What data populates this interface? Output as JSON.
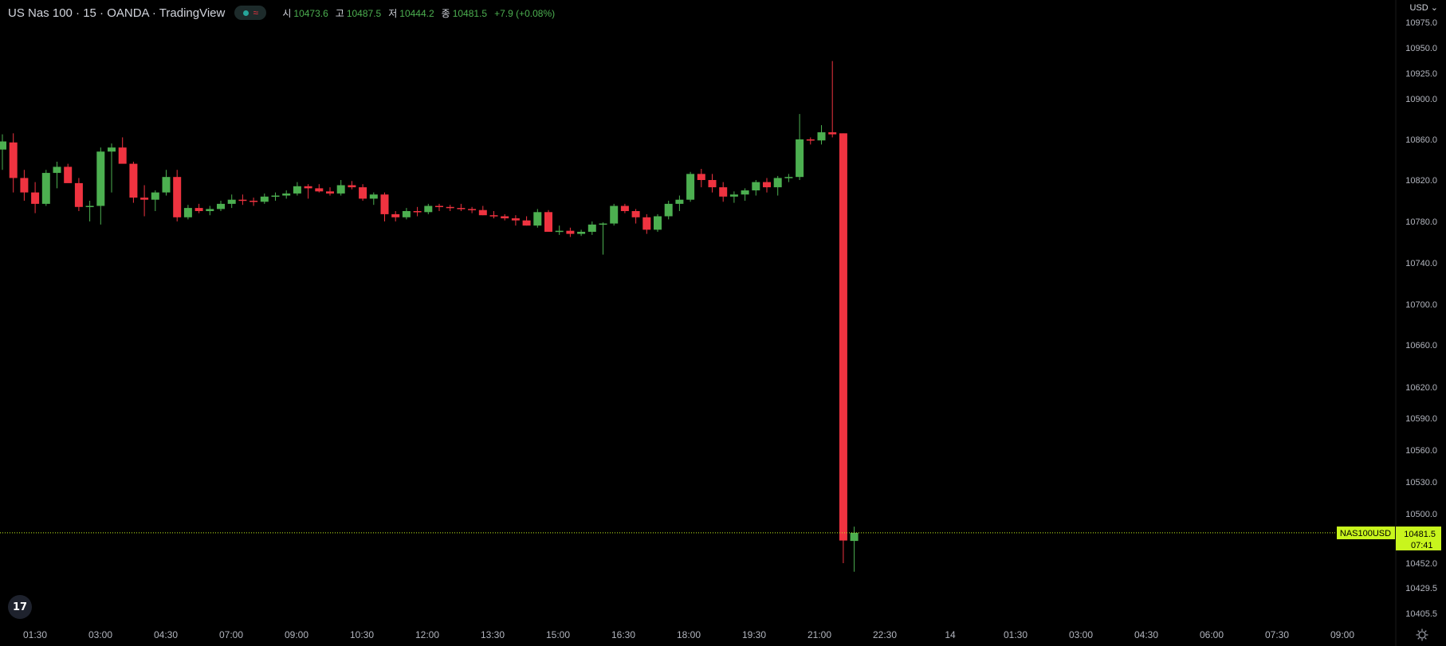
{
  "header": {
    "title": "US Nas 100 · 15 · OANDA · TradingView",
    "ohlc": [
      {
        "label": "시",
        "value": "10473.6"
      },
      {
        "label": "고",
        "value": "10487.5"
      },
      {
        "label": "저",
        "value": "10444.2"
      },
      {
        "label": "종",
        "value": "10481.5"
      }
    ],
    "change": "+7.9 (+0.08%)",
    "status_dot_color": "#26a69a",
    "status_icon": "≈"
  },
  "currency": "USD",
  "logo_text": "17",
  "price_tag": {
    "symbol": "NAS100USD",
    "price": "10481.5",
    "countdown": "07:41"
  },
  "colors": {
    "up": "#4caf50",
    "down": "#ef3340",
    "last_price": "#c8f51d",
    "text": "#d1d4dc"
  },
  "chart_data": {
    "type": "candlestick",
    "interval": "15",
    "y_ticks": [
      10975.0,
      10950.0,
      10925.0,
      10900.0,
      10860.0,
      10820.0,
      10780.0,
      10740.0,
      10700.0,
      10660.0,
      10620.0,
      10590.0,
      10560.0,
      10530.0,
      10500.0,
      10452.0,
      10429.5,
      10405.5
    ],
    "y_tick_labels": [
      "10975.0",
      "10950.0",
      "10925.0",
      "10900.0",
      "10860.0",
      "10820.0",
      "10780.0",
      "10740.0",
      "10700.0",
      "10660.0",
      "10620.0",
      "10590.0",
      "10560.0",
      "10530.0",
      "10500.0",
      "10452.0",
      "10429.5",
      "10405.5"
    ],
    "x_tick_labels": [
      "01:30",
      "03:00",
      "04:30",
      "07:00",
      "09:00",
      "10:30",
      "12:00",
      "13:30",
      "15:00",
      "16:30",
      "18:00",
      "19:30",
      "21:00",
      "22:30",
      "14",
      "01:30",
      "03:00",
      "04:30",
      "06:00",
      "07:30",
      "09:00"
    ],
    "last_price": 10481.5,
    "candles": [
      [
        10850,
        10865,
        10830,
        10858
      ],
      [
        10857,
        10866,
        10808,
        10822
      ],
      [
        10822,
        10830,
        10800,
        10808
      ],
      [
        10808,
        10818,
        10788,
        10797
      ],
      [
        10797,
        10830,
        10795,
        10827
      ],
      [
        10827,
        10838,
        10812,
        10833
      ],
      [
        10833,
        10836,
        10818,
        10817
      ],
      [
        10817,
        10822,
        10790,
        10794
      ],
      [
        10794,
        10800,
        10780,
        10795
      ],
      [
        10795,
        10852,
        10777,
        10848
      ],
      [
        10848,
        10856,
        10808,
        10852
      ],
      [
        10852,
        10862,
        10838,
        10836
      ],
      [
        10836,
        10838,
        10798,
        10803
      ],
      [
        10803,
        10815,
        10785,
        10801
      ],
      [
        10801,
        10810,
        10790,
        10808
      ],
      [
        10808,
        10830,
        10805,
        10823
      ],
      [
        10823,
        10830,
        10780,
        10784
      ],
      [
        10784,
        10796,
        10782,
        10793
      ],
      [
        10793,
        10797,
        10788,
        10790
      ],
      [
        10790,
        10795,
        10786,
        10792
      ],
      [
        10792,
        10800,
        10790,
        10797
      ],
      [
        10797,
        10806,
        10793,
        10801
      ],
      [
        10801,
        10806,
        10796,
        10800
      ],
      [
        10800,
        10803,
        10795,
        10799
      ],
      [
        10799,
        10807,
        10797,
        10804
      ],
      [
        10804,
        10808,
        10800,
        10805
      ],
      [
        10805,
        10810,
        10802,
        10807
      ],
      [
        10807,
        10818,
        10805,
        10814
      ],
      [
        10814,
        10816,
        10802,
        10812
      ],
      [
        10812,
        10816,
        10808,
        10809
      ],
      [
        10809,
        10813,
        10805,
        10807
      ],
      [
        10807,
        10820,
        10805,
        10815
      ],
      [
        10815,
        10819,
        10811,
        10813
      ],
      [
        10813,
        10816,
        10800,
        10802
      ],
      [
        10802,
        10808,
        10796,
        10806
      ],
      [
        10806,
        10808,
        10780,
        10787
      ],
      [
        10787,
        10790,
        10780,
        10784
      ],
      [
        10784,
        10793,
        10782,
        10790
      ],
      [
        10790,
        10794,
        10785,
        10789
      ],
      [
        10789,
        10797,
        10787,
        10795
      ],
      [
        10795,
        10797,
        10790,
        10794
      ],
      [
        10794,
        10796,
        10790,
        10793
      ],
      [
        10793,
        10797,
        10790,
        10792
      ],
      [
        10792,
        10794,
        10788,
        10791
      ],
      [
        10791,
        10795,
        10786,
        10786
      ],
      [
        10786,
        10790,
        10783,
        10785
      ],
      [
        10785,
        10787,
        10781,
        10783
      ],
      [
        10783,
        10786,
        10776,
        10781
      ],
      [
        10781,
        10785,
        10776,
        10776
      ],
      [
        10776,
        10792,
        10774,
        10789
      ],
      [
        10789,
        10791,
        10770,
        10770
      ],
      [
        10770,
        10776,
        10767,
        10771
      ],
      [
        10771,
        10774,
        10765,
        10768
      ],
      [
        10768,
        10772,
        10766,
        10770
      ],
      [
        10770,
        10780,
        10767,
        10777
      ],
      [
        10777,
        10779,
        10748,
        10778
      ],
      [
        10778,
        10797,
        10776,
        10795
      ],
      [
        10795,
        10797,
        10788,
        10790
      ],
      [
        10790,
        10792,
        10778,
        10784
      ],
      [
        10784,
        10787,
        10768,
        10772
      ],
      [
        10772,
        10787,
        10770,
        10785
      ],
      [
        10785,
        10800,
        10782,
        10797
      ],
      [
        10797,
        10805,
        10790,
        10801
      ],
      [
        10801,
        10828,
        10799,
        10826
      ],
      [
        10826,
        10831,
        10813,
        10820
      ],
      [
        10820,
        10826,
        10808,
        10813
      ],
      [
        10813,
        10818,
        10799,
        10804
      ],
      [
        10804,
        10809,
        10798,
        10806
      ],
      [
        10806,
        10812,
        10800,
        10810
      ],
      [
        10810,
        10820,
        10805,
        10818
      ],
      [
        10818,
        10822,
        10808,
        10813
      ],
      [
        10813,
        10824,
        10805,
        10822
      ],
      [
        10822,
        10826,
        10818,
        10823
      ],
      [
        10823,
        10885,
        10820,
        10860
      ],
      [
        10860,
        10862,
        10855,
        10859
      ],
      [
        10859,
        10874,
        10855,
        10867
      ],
      [
        10867,
        10937,
        10862,
        10865
      ],
      [
        10866,
        10866,
        10452,
        10474
      ],
      [
        10473.6,
        10487.5,
        10444.2,
        10481.5
      ]
    ]
  }
}
